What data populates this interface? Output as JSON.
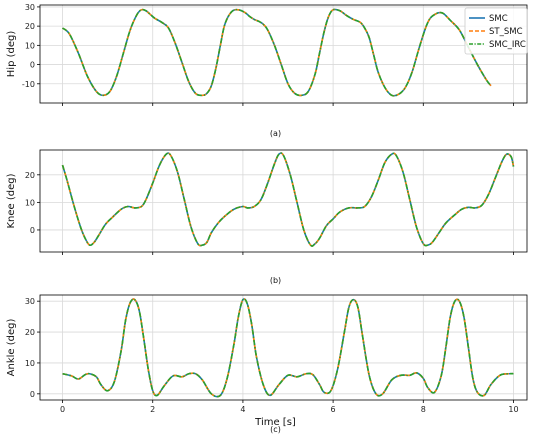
{
  "chart_data": [
    {
      "type": "line",
      "ylabel": "Hip (deg)",
      "xlabel": "",
      "caption": "(a)",
      "xlim": [
        -0.5,
        10.3
      ],
      "ylim": [
        -20,
        31
      ],
      "yticks": [
        -10,
        0,
        10,
        20,
        30
      ],
      "xticks": [
        0,
        2,
        4,
        6,
        8,
        10
      ],
      "show_xtick_labels": false,
      "grid": true,
      "legend": {
        "placement": "top-right",
        "entries": [
          "SMC",
          "ST_SMC",
          "SMC_IRC"
        ]
      },
      "series": [
        {
          "name": "SMC",
          "color": "#1f77b4",
          "style": "solid",
          "x": [
            0,
            0.15,
            0.35,
            0.55,
            0.75,
            0.9,
            1.05,
            1.2,
            1.35,
            1.5,
            1.65,
            1.75,
            1.85,
            1.95,
            2.05,
            2.2,
            2.35,
            2.5,
            2.65,
            2.8,
            2.95,
            3.1,
            3.2,
            3.3,
            3.4,
            3.5,
            3.6,
            3.75,
            3.9,
            4.05,
            4.15,
            4.25,
            4.35,
            4.45,
            4.55,
            4.7,
            4.85,
            5.0,
            5.15,
            5.3,
            5.45,
            5.6,
            5.7,
            5.8,
            5.9,
            6.0,
            6.15,
            6.3,
            6.45,
            6.6,
            6.7,
            6.8,
            6.9,
            7.0,
            7.15,
            7.3,
            7.45,
            7.6,
            7.75,
            7.9,
            8.05,
            8.15,
            8.25,
            8.35,
            8.45,
            8.6,
            8.8,
            9.0,
            9.2,
            9.4,
            9.5
          ],
          "y": [
            19,
            16,
            6,
            -6,
            -14,
            -16,
            -14,
            -6,
            6,
            18,
            26,
            28.5,
            28,
            26,
            24,
            22,
            19,
            11,
            1,
            -9,
            -15,
            -16,
            -15,
            -11,
            -2,
            10,
            21,
            27.5,
            28.5,
            27,
            25,
            23.5,
            22.5,
            21,
            18,
            10,
            0,
            -10,
            -15,
            -16,
            -14,
            -5,
            6,
            17,
            25,
            28.5,
            28,
            25.5,
            23.5,
            22,
            19,
            14,
            5,
            -4,
            -12,
            -16,
            -15.5,
            -12,
            -4,
            8,
            19,
            24,
            26,
            27,
            26.5,
            23,
            18,
            9,
            0,
            -8,
            -11
          ]
        },
        {
          "name": "ST_SMC",
          "color": "#ff7f0e",
          "style": "dashed",
          "same_as": "SMC"
        },
        {
          "name": "SMC_IRC",
          "color": "#2ca02c",
          "style": "dashdot",
          "same_as": "SMC"
        }
      ]
    },
    {
      "type": "line",
      "ylabel": "Knee (deg)",
      "xlabel": "",
      "caption": "(b)",
      "xlim": [
        -0.5,
        10.3
      ],
      "ylim": [
        -8,
        29
      ],
      "yticks": [
        0,
        10,
        20
      ],
      "xticks": [
        0,
        2,
        4,
        6,
        8,
        10
      ],
      "show_xtick_labels": false,
      "grid": true,
      "series": [
        {
          "name": "SMC",
          "color": "#1f77b4",
          "style": "solid",
          "x": [
            0,
            0.1,
            0.25,
            0.4,
            0.5,
            0.6,
            0.7,
            0.8,
            0.95,
            1.1,
            1.3,
            1.45,
            1.6,
            1.75,
            1.85,
            2.0,
            2.15,
            2.3,
            2.4,
            2.55,
            2.7,
            2.85,
            3.0,
            3.1,
            3.2,
            3.3,
            3.45,
            3.6,
            3.8,
            4.0,
            4.1,
            4.25,
            4.4,
            4.55,
            4.7,
            4.8,
            4.9,
            5.05,
            5.2,
            5.35,
            5.5,
            5.6,
            5.7,
            5.85,
            6.0,
            6.15,
            6.35,
            6.55,
            6.7,
            6.85,
            7.0,
            7.15,
            7.3,
            7.4,
            7.55,
            7.7,
            7.85,
            8.0,
            8.1,
            8.2,
            8.35,
            8.5,
            8.7,
            8.85,
            9.0,
            9.15,
            9.3,
            9.45,
            9.6,
            9.75,
            9.85,
            9.95,
            10.0
          ],
          "y": [
            23.5,
            18,
            9,
            1,
            -3,
            -5.5,
            -4.5,
            -2,
            2,
            4.5,
            7.5,
            8.5,
            8,
            8.5,
            11,
            17,
            23.5,
            27.5,
            27,
            21,
            11,
            1,
            -5,
            -5.5,
            -4.5,
            -1,
            2.5,
            5,
            7.5,
            8.5,
            8,
            8.5,
            11,
            17,
            24,
            27.5,
            27,
            20,
            10,
            0,
            -5.5,
            -5,
            -3,
            1.5,
            4,
            6.5,
            8,
            8,
            8.5,
            12,
            18,
            24.5,
            27.5,
            27,
            21,
            11,
            1,
            -5,
            -5.5,
            -4.5,
            -1,
            2.5,
            5.5,
            7.5,
            8.2,
            8,
            9,
            13,
            19,
            25,
            27.5,
            26.5,
            23
          ]
        },
        {
          "name": "ST_SMC",
          "color": "#ff7f0e",
          "style": "dashed",
          "same_as": "SMC"
        },
        {
          "name": "SMC_IRC",
          "color": "#2ca02c",
          "style": "dashdot",
          "same_as": "SMC"
        }
      ]
    },
    {
      "type": "line",
      "ylabel": "Ankle (deg)",
      "xlabel": "Time [s]",
      "caption": "(c)",
      "xlim": [
        -0.5,
        10.3
      ],
      "ylim": [
        -2,
        32
      ],
      "yticks": [
        0,
        10,
        20,
        30
      ],
      "xticks": [
        0,
        2,
        4,
        6,
        8,
        10
      ],
      "show_xtick_labels": true,
      "grid": true,
      "series": [
        {
          "name": "SMC",
          "color": "#1f77b4",
          "style": "solid",
          "x": [
            0,
            0.2,
            0.35,
            0.5,
            0.6,
            0.75,
            0.85,
            1.0,
            1.15,
            1.3,
            1.4,
            1.5,
            1.6,
            1.7,
            1.8,
            1.9,
            2.0,
            2.1,
            2.25,
            2.45,
            2.65,
            2.8,
            2.95,
            3.1,
            3.3,
            3.5,
            3.65,
            3.8,
            3.9,
            4.0,
            4.1,
            4.2,
            4.3,
            4.45,
            4.6,
            4.8,
            5.0,
            5.2,
            5.4,
            5.55,
            5.7,
            5.8,
            5.95,
            6.1,
            6.25,
            6.35,
            6.45,
            6.55,
            6.65,
            6.8,
            6.95,
            7.1,
            7.3,
            7.5,
            7.7,
            7.85,
            8.0,
            8.1,
            8.25,
            8.4,
            8.5,
            8.6,
            8.7,
            8.8,
            8.9,
            9.0,
            9.1,
            9.2,
            9.35,
            9.5,
            9.7,
            9.9,
            10.0
          ],
          "y": [
            6.5,
            5.8,
            4.8,
            6.2,
            6.5,
            5.5,
            3,
            1,
            4,
            14,
            24,
            29.5,
            30.5,
            27,
            18,
            8,
            1,
            -0.5,
            2.5,
            5.8,
            5.5,
            6.5,
            6.5,
            4.5,
            0,
            -0.5,
            5,
            16,
            25,
            30.5,
            29,
            22,
            12,
            3,
            -0.5,
            3,
            6,
            5.5,
            6.5,
            6.2,
            3,
            0.5,
            1,
            8,
            20,
            28,
            30.5,
            28,
            19,
            6,
            0,
            0,
            4.5,
            6,
            6,
            6.8,
            5,
            2,
            0.5,
            6,
            15,
            25,
            30,
            30,
            25,
            15,
            5,
            0.5,
            -0.5,
            3,
            6,
            6.5,
            6.5
          ]
        },
        {
          "name": "ST_SMC",
          "color": "#ff7f0e",
          "style": "dashed",
          "same_as": "SMC"
        },
        {
          "name": "SMC_IRC",
          "color": "#2ca02c",
          "style": "dashdot",
          "same_as": "SMC"
        }
      ]
    }
  ]
}
